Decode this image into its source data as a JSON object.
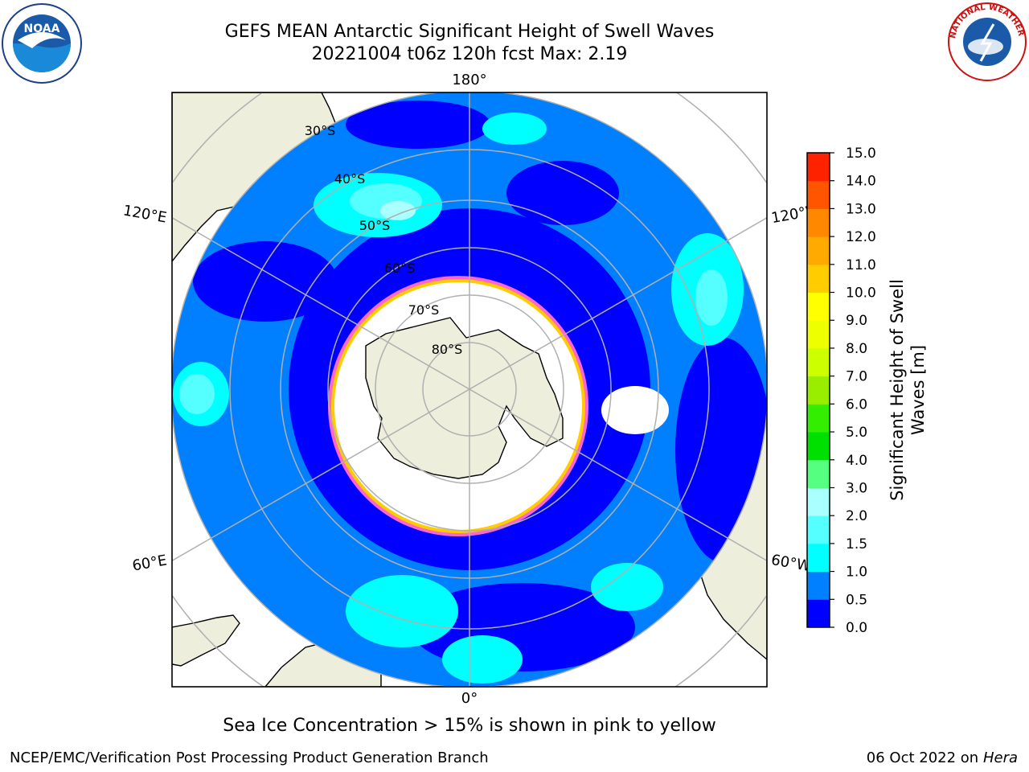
{
  "header": {
    "title_line1": "GEFS MEAN Antarctic Significant Height of Swell Waves",
    "title_line2": "20221004 t06z 120h fcst   Max: 2.19"
  },
  "map": {
    "projection": "south-polar-stereographic",
    "lon_labels": {
      "top": "180°",
      "bottom": "0°",
      "upper_left": "120°E",
      "upper_right": "120°W",
      "lower_left": "60°E",
      "lower_right": "60°W"
    },
    "lat_labels": [
      "30°S",
      "40°S",
      "50°S",
      "60°S",
      "70°S",
      "80°S"
    ],
    "ocean_colors": {
      "band_0_0.5": "#0000ff",
      "band_0.5_1.0": "#0080ff",
      "band_1.0_1.5": "#00ffff",
      "band_1.5_2.0": "#55ffff",
      "band_2.0_2.5": "#aaffff"
    },
    "land_color": "#eeeedc",
    "sea_ice_colors": [
      "#ff66cc",
      "#ffcc00"
    ]
  },
  "colorbar": {
    "label": "Significant Height of Swell Waves [m]",
    "ticks": [
      "0.0",
      "0.5",
      "1.0",
      "1.5",
      "2.0",
      "3.0",
      "4.0",
      "5.0",
      "6.0",
      "7.0",
      "8.0",
      "9.0",
      "10.0",
      "11.0",
      "12.0",
      "13.0",
      "14.0",
      "15.0"
    ],
    "colors": [
      "#0000ff",
      "#0080ff",
      "#00ffff",
      "#55ffff",
      "#aaffff",
      "#55ff80",
      "#00e000",
      "#33ee00",
      "#99ee00",
      "#ccff00",
      "#eeff00",
      "#ffff00",
      "#ffcc00",
      "#ffaa00",
      "#ff8800",
      "#ff5500",
      "#ff2200"
    ]
  },
  "note": "Sea Ice Concentration > 15% is shown in pink to yellow",
  "footer": {
    "left": "NCEP/EMC/Verification Post Processing Product Generation Branch",
    "right_date": "06 Oct 2022 on ",
    "right_host": "Hera"
  },
  "logos": {
    "left": "NOAA",
    "right": "NATIONAL WEATHER SERVICE"
  }
}
